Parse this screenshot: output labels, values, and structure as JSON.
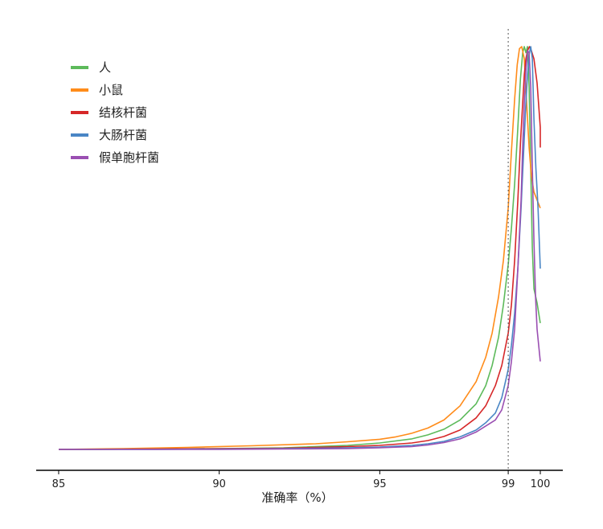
{
  "chart_data": {
    "type": "line",
    "xlabel": "准确率（%）",
    "ylabel": "",
    "title": "",
    "xlim": [
      84.3,
      100.7
    ],
    "ylim": [
      0,
      1
    ],
    "x_ticks": [
      {
        "value": 85,
        "label": "85"
      },
      {
        "value": 90,
        "label": "90"
      },
      {
        "value": 95,
        "label": "95"
      },
      {
        "value": 99,
        "label": "99"
      },
      {
        "value": 100,
        "label": "100"
      }
    ],
    "reference_line": {
      "x": 99,
      "style": "dotted"
    },
    "grid": false,
    "legend_position": "top-left",
    "series": [
      {
        "name": "人",
        "color": "#5dba5b",
        "points": [
          [
            85,
            0.002
          ],
          [
            88,
            0.003
          ],
          [
            90,
            0.004
          ],
          [
            92,
            0.006
          ],
          [
            94,
            0.012
          ],
          [
            95,
            0.018
          ],
          [
            96,
            0.028
          ],
          [
            96.5,
            0.038
          ],
          [
            97,
            0.052
          ],
          [
            97.5,
            0.075
          ],
          [
            98,
            0.115
          ],
          [
            98.3,
            0.16
          ],
          [
            98.5,
            0.21
          ],
          [
            98.7,
            0.28
          ],
          [
            98.85,
            0.36
          ],
          [
            99,
            0.46
          ],
          [
            99.1,
            0.55
          ],
          [
            99.2,
            0.66
          ],
          [
            99.3,
            0.8
          ],
          [
            99.38,
            0.92
          ],
          [
            99.45,
            0.985
          ],
          [
            99.5,
            1.0
          ],
          [
            99.55,
            0.985
          ],
          [
            99.6,
            1.0
          ],
          [
            99.65,
            0.9
          ],
          [
            99.7,
            0.7
          ],
          [
            99.75,
            0.5
          ],
          [
            99.8,
            0.4
          ],
          [
            99.9,
            0.365
          ],
          [
            100,
            0.315
          ]
        ]
      },
      {
        "name": "小鼠",
        "color": "#ff8c1a",
        "points": [
          [
            85,
            0.002
          ],
          [
            87,
            0.004
          ],
          [
            89,
            0.007
          ],
          [
            91,
            0.011
          ],
          [
            93,
            0.016
          ],
          [
            94,
            0.021
          ],
          [
            95,
            0.027
          ],
          [
            95.5,
            0.033
          ],
          [
            96,
            0.042
          ],
          [
            96.5,
            0.055
          ],
          [
            97,
            0.075
          ],
          [
            97.5,
            0.11
          ],
          [
            98,
            0.17
          ],
          [
            98.3,
            0.23
          ],
          [
            98.5,
            0.29
          ],
          [
            98.7,
            0.38
          ],
          [
            98.85,
            0.47
          ],
          [
            99,
            0.6
          ],
          [
            99.1,
            0.74
          ],
          [
            99.2,
            0.87
          ],
          [
            99.28,
            0.955
          ],
          [
            99.35,
            0.995
          ],
          [
            99.42,
            1.0
          ],
          [
            99.5,
            0.97
          ],
          [
            99.58,
            0.85
          ],
          [
            99.65,
            0.75
          ],
          [
            99.72,
            0.68
          ],
          [
            99.8,
            0.64
          ],
          [
            99.9,
            0.62
          ],
          [
            100,
            0.6
          ]
        ]
      },
      {
        "name": "结核杆菌",
        "color": "#d62728",
        "points": [
          [
            85,
            0.002
          ],
          [
            88,
            0.003
          ],
          [
            90,
            0.004
          ],
          [
            92,
            0.005
          ],
          [
            94,
            0.009
          ],
          [
            95,
            0.012
          ],
          [
            96,
            0.018
          ],
          [
            96.5,
            0.024
          ],
          [
            97,
            0.034
          ],
          [
            97.5,
            0.05
          ],
          [
            98,
            0.08
          ],
          [
            98.3,
            0.11
          ],
          [
            98.6,
            0.16
          ],
          [
            98.8,
            0.21
          ],
          [
            99,
            0.29
          ],
          [
            99.1,
            0.36
          ],
          [
            99.2,
            0.47
          ],
          [
            99.3,
            0.62
          ],
          [
            99.38,
            0.76
          ],
          [
            99.45,
            0.86
          ],
          [
            99.5,
            0.93
          ],
          [
            99.55,
            0.97
          ],
          [
            99.6,
            0.99
          ],
          [
            99.66,
            1.0
          ],
          [
            99.72,
            0.99
          ],
          [
            99.8,
            0.97
          ],
          [
            99.9,
            0.91
          ],
          [
            100,
            0.8
          ],
          [
            100,
            0.75
          ]
        ]
      },
      {
        "name": "大肠杆菌",
        "color": "#4a86c5",
        "points": [
          [
            85,
            0.002
          ],
          [
            88,
            0.002
          ],
          [
            90,
            0.003
          ],
          [
            92,
            0.004
          ],
          [
            94,
            0.006
          ],
          [
            95,
            0.008
          ],
          [
            96,
            0.012
          ],
          [
            96.5,
            0.016
          ],
          [
            97,
            0.022
          ],
          [
            97.5,
            0.033
          ],
          [
            98,
            0.05
          ],
          [
            98.3,
            0.068
          ],
          [
            98.6,
            0.092
          ],
          [
            98.8,
            0.13
          ],
          [
            99,
            0.2
          ],
          [
            99.1,
            0.26
          ],
          [
            99.2,
            0.34
          ],
          [
            99.3,
            0.45
          ],
          [
            99.4,
            0.6
          ],
          [
            99.48,
            0.74
          ],
          [
            99.55,
            0.86
          ],
          [
            99.6,
            0.93
          ],
          [
            99.65,
            0.98
          ],
          [
            99.7,
            1.0
          ],
          [
            99.75,
            0.97
          ],
          [
            99.8,
            0.82
          ],
          [
            99.86,
            0.7
          ],
          [
            99.93,
            0.6
          ],
          [
            100,
            0.45
          ]
        ]
      },
      {
        "name": "假单胞杆菌",
        "color": "#9a4fb2",
        "points": [
          [
            85,
            0.002
          ],
          [
            88,
            0.002
          ],
          [
            90,
            0.002
          ],
          [
            92,
            0.003
          ],
          [
            94,
            0.004
          ],
          [
            95,
            0.006
          ],
          [
            96,
            0.009
          ],
          [
            96.5,
            0.013
          ],
          [
            97,
            0.019
          ],
          [
            97.5,
            0.028
          ],
          [
            98,
            0.045
          ],
          [
            98.3,
            0.06
          ],
          [
            98.6,
            0.075
          ],
          [
            98.8,
            0.1
          ],
          [
            99,
            0.16
          ],
          [
            99.1,
            0.22
          ],
          [
            99.2,
            0.3
          ],
          [
            99.3,
            0.45
          ],
          [
            99.4,
            0.62
          ],
          [
            99.45,
            0.75
          ],
          [
            99.5,
            0.86
          ],
          [
            99.55,
            0.94
          ],
          [
            99.6,
            0.99
          ],
          [
            99.65,
            0.985
          ],
          [
            99.7,
            0.9
          ],
          [
            99.75,
            0.7
          ],
          [
            99.8,
            0.52
          ],
          [
            99.85,
            0.38
          ],
          [
            99.9,
            0.3
          ],
          [
            100,
            0.22
          ]
        ]
      }
    ]
  }
}
